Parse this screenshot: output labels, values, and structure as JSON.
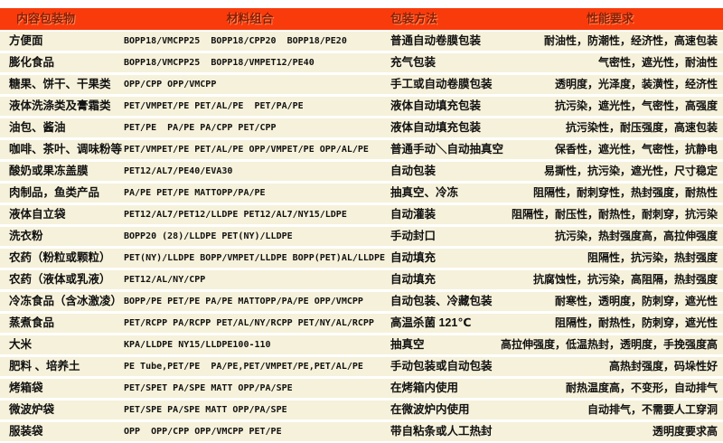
{
  "colors": {
    "page_bg": "#ffffff",
    "header_bg": "#f93b0c",
    "header_text": "#8e1c00",
    "header_text_glow": "#ff8c5a",
    "row_bg": "#f6f1da",
    "text": "#111111"
  },
  "table": {
    "headers": [
      {
        "label": "内容包装物"
      },
      {
        "label": "材料组合"
      },
      {
        "label": "包装方法"
      },
      {
        "label": "性能要求"
      }
    ],
    "rows": [
      {
        "item": "方便面",
        "materials": "BOPP18/VMCPP25  BOPP18/CPP20  BOPP18/PE20",
        "method": "普通自动卷膜包装",
        "requirements": "耐油性，防潮性，经济性，高速包装"
      },
      {
        "item": "膨化食品",
        "materials": "BOPP18/VMCPP25  BOPP18/VMPET12/PE40",
        "method": "充气包装",
        "requirements": "气密性，遮光性，耐油性"
      },
      {
        "item": "糖果、饼干、干果类",
        "materials": "OPP/CPP OPP/VMCPP",
        "method": "手工或自动卷膜包装",
        "requirements": "透明度，光泽度，装潢性，经济性"
      },
      {
        "item": "液体洗涤类及膏霜类",
        "materials": "PET/VMPET/PE PET/AL/PE  PET/PA/PE",
        "method": "液体自动填充包装",
        "requirements": "抗污染，遮光性，气密性，高强度"
      },
      {
        "item": "油包、酱油",
        "materials": "PET/PE  PA/PE PA/CPP PET/CPP",
        "method": "液体自动填充包装",
        "requirements": "抗污染性，耐压强度，高速包装"
      },
      {
        "item": "咖啡、茶叶、调味粉等",
        "materials": "PET/VMPET/PE PET/AL/PE OPP/VMPET/PE OPP/AL/PE",
        "method": "普通手动＼自动抽真空",
        "requirements": "保香性，遮光性，气密性，抗静电"
      },
      {
        "item": "酸奶或果冻盖膜",
        "materials": "PET12/AL7/PE40/EVA30",
        "method": "自动包装",
        "requirements": "易撕性，抗污染，遮光性，尺寸稳定"
      },
      {
        "item": "肉制品，鱼类产品",
        "materials": "PA/PE PET/PE MATTOPP/PA/PE",
        "method": "抽真空、冷冻",
        "requirements": "阻隔性，耐刺穿性，热封强度，耐热性"
      },
      {
        "item": "液体自立袋",
        "materials": "PET12/AL7/PET12/LLDPE PET12/AL7/NY15/LDPE",
        "method": "自动灌装",
        "requirements": "阻隔性，耐压性，耐热性，耐刺穿，抗污染"
      },
      {
        "item": "洗衣粉",
        "materials": "BOPP20 (28)/LLDPE PET(NY)/LLDPE",
        "method": "手动封口",
        "requirements": "抗污染，热封强度高，高拉伸强度"
      },
      {
        "item": "农药（粉粒或颗粒）",
        "materials": "PET(NY)/LLDPE BOPP/VMPET/LLDPE BOPP(PET)AL/LLDPE",
        "method": "自动填充",
        "requirements": "阻隔性，抗污染，热封强度"
      },
      {
        "item": "农药（液体或乳液）",
        "materials": "PET12/AL/NY/CPP",
        "method": "自动填充",
        "requirements": "抗腐蚀性，抗污染，高阻隔，热封强度"
      },
      {
        "item": "冷冻食品（含冰激凌）",
        "materials": "BOPP/PE PET/PE PA/PE MATTOPP/PA/PE OPP/VMCPP",
        "method": "自动包装、冷藏包装",
        "requirements": "耐寒性，透明度，防刺穿，遮光性"
      },
      {
        "item": "蒸煮食品",
        "materials": "PET/RCPP PA/RCPP PET/AL/NY/RCPP PET/NY/AL/RCPP",
        "method": "高温杀菌 121℃",
        "requirements": "阻隔性，耐热性，防刺穿，遮光性"
      },
      {
        "item": "大米",
        "materials": "KPA/LLDPE NY15/LLDPE100-110",
        "method": "抽真空",
        "requirements": "高拉伸强度，低温热封，透明度，手挽强度高"
      },
      {
        "item": "肥料 、培养土",
        "materials": "PE Tube,PET/PE  PA/PE,PET/VMPET/PE,PET/AL/PE",
        "method": "手动包装或自动包装",
        "requirements": "高热封强度，码垛性好"
      },
      {
        "item": "烤箱袋",
        "materials": "PET/SPET PA/SPE MATT OPP/PA/SPE",
        "method": "在烤箱内使用",
        "requirements": "耐热温度高，不变形，自动排气"
      },
      {
        "item": "微波炉袋",
        "materials": "PET/SPE PA/SPE MATT OPP/PA/SPE",
        "method": "在微波炉内使用",
        "requirements": "自动排气，不需要人工穿洞"
      },
      {
        "item": "服装袋",
        "materials": "OPP  OPP/CPP OPP/VMCPP PET/PE",
        "method": "带自粘条或人工热封",
        "requirements": "透明度要求高"
      }
    ]
  }
}
